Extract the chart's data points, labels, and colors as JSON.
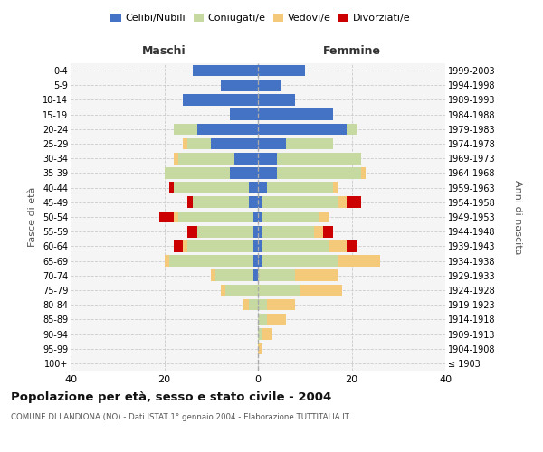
{
  "age_groups": [
    "100+",
    "95-99",
    "90-94",
    "85-89",
    "80-84",
    "75-79",
    "70-74",
    "65-69",
    "60-64",
    "55-59",
    "50-54",
    "45-49",
    "40-44",
    "35-39",
    "30-34",
    "25-29",
    "20-24",
    "15-19",
    "10-14",
    "5-9",
    "0-4"
  ],
  "birth_years": [
    "≤ 1903",
    "1904-1908",
    "1909-1913",
    "1914-1918",
    "1919-1923",
    "1924-1928",
    "1929-1933",
    "1934-1938",
    "1939-1943",
    "1944-1948",
    "1949-1953",
    "1954-1958",
    "1959-1963",
    "1964-1968",
    "1969-1973",
    "1974-1978",
    "1979-1983",
    "1984-1988",
    "1989-1993",
    "1994-1998",
    "1999-2003"
  ],
  "male": {
    "celibi": [
      0,
      0,
      0,
      0,
      0,
      0,
      1,
      1,
      1,
      1,
      1,
      2,
      2,
      6,
      5,
      10,
      13,
      6,
      16,
      8,
      14
    ],
    "coniugati": [
      0,
      0,
      0,
      0,
      2,
      7,
      8,
      18,
      14,
      12,
      16,
      12,
      16,
      14,
      12,
      5,
      5,
      0,
      0,
      0,
      0
    ],
    "vedovi": [
      0,
      0,
      0,
      0,
      1,
      1,
      1,
      1,
      1,
      0,
      1,
      0,
      0,
      0,
      1,
      1,
      0,
      0,
      0,
      0,
      0
    ],
    "divorziati": [
      0,
      0,
      0,
      0,
      0,
      0,
      0,
      0,
      2,
      2,
      3,
      1,
      1,
      0,
      0,
      0,
      0,
      0,
      0,
      0,
      0
    ]
  },
  "female": {
    "nubili": [
      0,
      0,
      0,
      0,
      0,
      0,
      0,
      1,
      1,
      1,
      1,
      1,
      2,
      4,
      4,
      6,
      19,
      16,
      8,
      5,
      10
    ],
    "coniugate": [
      0,
      0,
      1,
      2,
      2,
      9,
      8,
      16,
      14,
      11,
      12,
      16,
      14,
      18,
      18,
      10,
      2,
      0,
      0,
      0,
      0
    ],
    "vedove": [
      0,
      1,
      2,
      4,
      6,
      9,
      9,
      9,
      4,
      2,
      2,
      2,
      1,
      1,
      0,
      0,
      0,
      0,
      0,
      0,
      0
    ],
    "divorziate": [
      0,
      0,
      0,
      0,
      0,
      0,
      0,
      0,
      2,
      2,
      0,
      3,
      0,
      0,
      0,
      0,
      0,
      0,
      0,
      0,
      0
    ]
  },
  "colors": {
    "celibi_nubili": "#4472C4",
    "coniugati": "#C5D9A0",
    "vedovi": "#F5C97A",
    "divorziati": "#CC0000"
  },
  "xlim": 40,
  "title": "Popolazione per età, sesso e stato civile - 2004",
  "subtitle": "COMUNE DI LANDIONA (NO) - Dati ISTAT 1° gennaio 2004 - Elaborazione TUTTITALIA.IT",
  "ylabel_left": "Fasce di età",
  "ylabel_right": "Anni di nascita",
  "xlabel_left": "Maschi",
  "xlabel_right": "Femmine",
  "legend_labels": [
    "Celibi/Nubili",
    "Coniugati/e",
    "Vedovi/e",
    "Divorziati/e"
  ],
  "bg_color": "#f5f5f5"
}
